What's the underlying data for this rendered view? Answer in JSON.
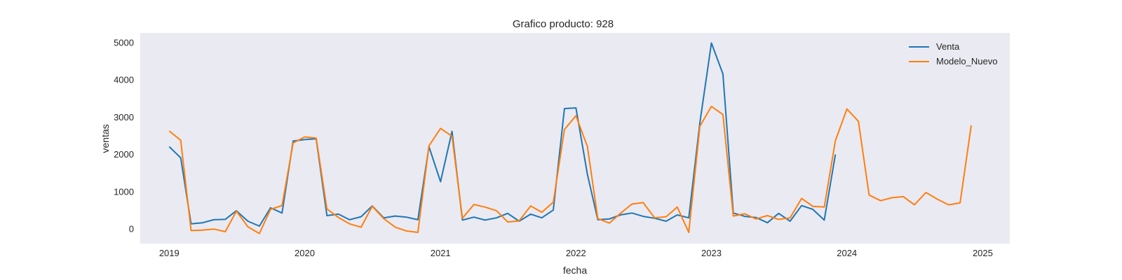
{
  "chart_data": {
    "type": "line",
    "title": "Grafico producto: 928",
    "xlabel": "fecha",
    "ylabel": "ventas",
    "x_ticks": [
      "2019",
      "2020",
      "2021",
      "2022",
      "2023",
      "2024",
      "2025"
    ],
    "y_ticks": [
      "0",
      "1000",
      "2000",
      "3000",
      "4000",
      "5000"
    ],
    "xlim": [
      "2018-10-15",
      "2025-03-15"
    ],
    "ylim": [
      -400,
      5250
    ],
    "x_start": "2019-01-01",
    "grid": false,
    "legend_position": "top-right",
    "series": [
      {
        "name": "Venta",
        "color": "#1f77b4",
        "values": [
          2200,
          1900,
          130,
          160,
          240,
          250,
          480,
          200,
          70,
          560,
          420,
          2350,
          2390,
          2410,
          350,
          390,
          240,
          320,
          610,
          290,
          340,
          310,
          240,
          2200,
          1260,
          2610,
          230,
          310,
          230,
          290,
          410,
          200,
          390,
          290,
          500,
          3220,
          3240,
          1450,
          240,
          260,
          370,
          420,
          330,
          280,
          200,
          370,
          290,
          2850,
          4980,
          4150,
          420,
          330,
          300,
          160,
          410,
          200,
          620,
          520,
          230,
          1990
        ]
      },
      {
        "name": "Modelo_Nuevo",
        "color": "#ff7f0e",
        "values": [
          2620,
          2370,
          -50,
          -40,
          -10,
          -80,
          470,
          50,
          -130,
          520,
          620,
          2300,
          2460,
          2430,
          530,
          300,
          130,
          40,
          600,
          270,
          40,
          -60,
          -100,
          2220,
          2690,
          2480,
          280,
          650,
          580,
          480,
          180,
          210,
          610,
          440,
          710,
          2660,
          3030,
          2200,
          270,
          150,
          410,
          660,
          700,
          290,
          320,
          580,
          -100,
          2750,
          3280,
          3060,
          340,
          400,
          260,
          350,
          250,
          290,
          810,
          600,
          580,
          2360,
          3210,
          2880,
          900,
          750,
          830,
          860,
          640,
          970,
          790,
          640,
          690,
          2770
        ]
      }
    ]
  }
}
